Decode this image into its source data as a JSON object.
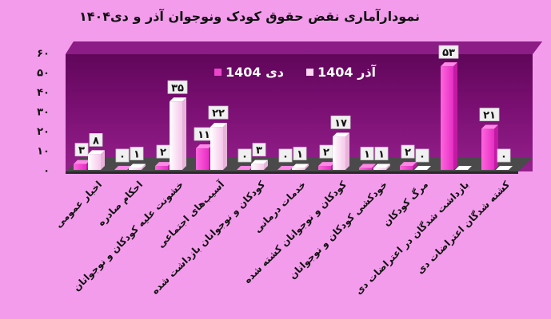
{
  "chart_data": {
    "type": "bar",
    "title": "نمودارآماری نقض حقوق کودک ونوجوان آذر و دی۱۴۰۴",
    "categories": [
      "اخبار عمومی",
      "احکام صادره",
      "خشونت علیه کودکان و نوجوانان",
      "آسیب‌های اجتماعی",
      "کودکان و نوجوانان بازداشت شده",
      "خدمات درمانی",
      "کودکان و نوجوانان کشته شده",
      "خودکشی کودکان و نوجوانان",
      "مرگ کودکان",
      "بازداشت شدگان در اعتراضات دی",
      "کشته شدگان اعتراضات دی"
    ],
    "series": [
      {
        "name": "دی 1404",
        "color": "#ee44cc",
        "values": [
          3,
          0,
          2,
          11,
          0,
          0,
          2,
          1,
          2,
          53,
          21
        ],
        "labels": [
          "۳",
          "۰",
          "۲",
          "۱۱",
          "۰",
          "۰",
          "۲",
          "۱",
          "۲",
          "۵۳",
          "۲۱"
        ]
      },
      {
        "name": "آذر 1404",
        "color": "#ffd6f2",
        "values": [
          8,
          1,
          35,
          22,
          3,
          1,
          17,
          1,
          0,
          0,
          0
        ],
        "labels": [
          "۸",
          "۱",
          "۳۵",
          "۲۲",
          "۳",
          "۱",
          "۱۷",
          "۱",
          "۰",
          "",
          "۰"
        ]
      }
    ],
    "ylim": [
      0,
      60
    ],
    "yticks": [
      0,
      10,
      20,
      30,
      40,
      50,
      60
    ],
    "ytick_labels": [
      "۰",
      "۱۰",
      "۲۰",
      "۳۰",
      "۴۰",
      "۵۰",
      "۶۰"
    ],
    "grid": false,
    "legend_position": "top",
    "colors": {
      "background": "#f49cec",
      "plot_wall": "#6e0766",
      "plot_wall_light": "#8c1c86",
      "floor": "#555555",
      "label_box": "#f0f0f0"
    }
  }
}
